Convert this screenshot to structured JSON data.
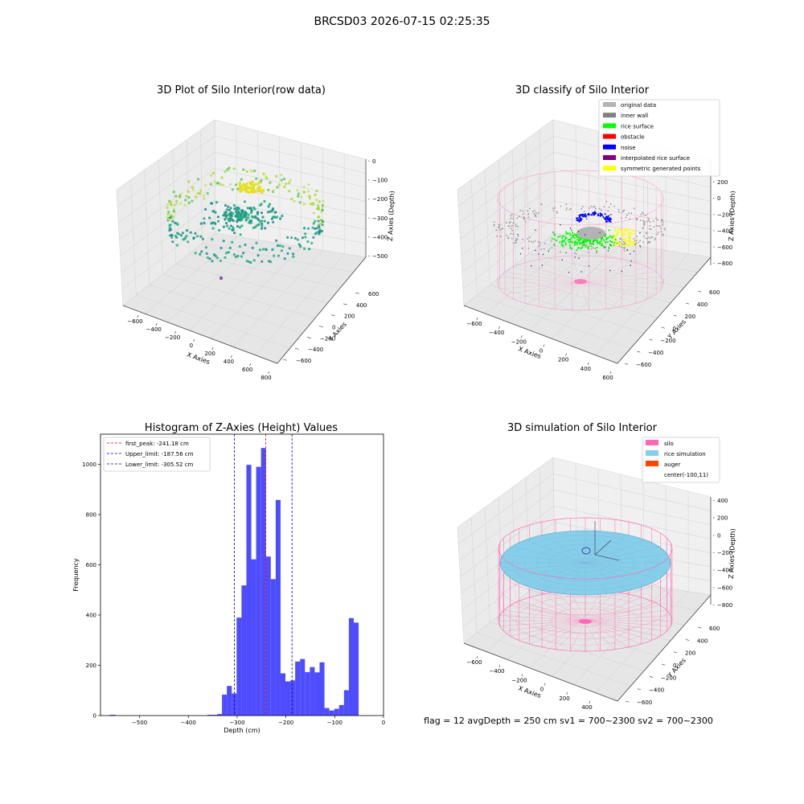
{
  "figure": {
    "suptitle": "BRCSD03 2026-07-15 02:25:35",
    "footer": "flag = 12   avgDepth = 250 cm  sv1 = 700~2300  sv2 = 700~2300"
  },
  "chart_data": [
    {
      "type": "scatter",
      "projection": "3d",
      "title": "3D Plot of Silo Interior(row data)",
      "xlabel": "X Axies",
      "ylabel": "Y Axies",
      "zlabel": "Z Axies (Depth)",
      "xticks": [
        "−600",
        "−400",
        "−200",
        "0",
        "200",
        "400",
        "600",
        "800"
      ],
      "yticks": [
        "−600",
        "−400",
        "−200",
        "0",
        "200",
        "400",
        "600"
      ],
      "zticks": [
        "0",
        "−100",
        "−200",
        "−300",
        "−400",
        "−500"
      ],
      "xlim": [
        -700,
        800
      ],
      "ylim": [
        -600,
        650
      ],
      "zlim": [
        -560,
        0
      ],
      "colormap": "viridis",
      "colors": {
        "pane": "#f2f2f2",
        "grid": "#d6d6d6"
      }
    },
    {
      "type": "scatter",
      "projection": "3d",
      "title": "3D classify of Silo Interior",
      "xlabel": "X Axies",
      "ylabel": "Y Axies",
      "zlabel": "Z Axies (Depth)",
      "xticks": [
        "−600",
        "−400",
        "−200",
        "0",
        "200",
        "400",
        "600"
      ],
      "yticks": [
        "−600",
        "−400",
        "−200",
        "0",
        "200",
        "400",
        "600"
      ],
      "zticks": [
        "200",
        "0",
        "−200",
        "−400",
        "−600",
        "−800"
      ],
      "legend_position": "top-right",
      "legend": [
        {
          "name": "original data",
          "color": "#b3b3b3"
        },
        {
          "name": "inner wall",
          "color": "#808080"
        },
        {
          "name": "rice surface",
          "color": "#00ff00"
        },
        {
          "name": "obstacle",
          "color": "#ff0000"
        },
        {
          "name": "noise",
          "color": "#0000ff"
        },
        {
          "name": "interpolated rice surface",
          "color": "#800080"
        },
        {
          "name": "symmetric generated points",
          "color": "#ffff00"
        }
      ],
      "colors": {
        "silo_wire": "#ff69b4"
      }
    },
    {
      "type": "bar",
      "title": "Histogram of Z-Axies (Height) Values",
      "xlabel": "Depth (cm)",
      "ylabel": "Frequency",
      "xlim": [
        -580,
        0
      ],
      "ylim": [
        0,
        1120
      ],
      "xticks": [
        -500,
        -400,
        -300,
        -200,
        -100,
        0
      ],
      "xtick_labels": [
        "−500",
        "−400",
        "−300",
        "−200",
        "−100",
        "0"
      ],
      "yticks": [
        0,
        200,
        400,
        600,
        800,
        1000
      ],
      "yticks_labels": [
        "0",
        "200",
        "400",
        "600",
        "800",
        "1000"
      ],
      "bar_color": "#4d4dff",
      "bins": [
        {
          "x0": -561,
          "x1": -549,
          "value": 3
        },
        {
          "x0": -361,
          "x1": -351,
          "value": 3
        },
        {
          "x0": -351,
          "x1": -341,
          "value": 3
        },
        {
          "x0": -341,
          "x1": -331,
          "value": 6
        },
        {
          "x0": -331,
          "x1": -321,
          "value": 83
        },
        {
          "x0": -321,
          "x1": -311,
          "value": 118
        },
        {
          "x0": -311,
          "x1": -301,
          "value": 88
        },
        {
          "x0": -301,
          "x1": -291,
          "value": 390
        },
        {
          "x0": -291,
          "x1": -281,
          "value": 518
        },
        {
          "x0": -281,
          "x1": -271,
          "value": 998
        },
        {
          "x0": -271,
          "x1": -261,
          "value": 622
        },
        {
          "x0": -261,
          "x1": -251,
          "value": 990
        },
        {
          "x0": -251,
          "x1": -241,
          "value": 1065
        },
        {
          "x0": -241,
          "x1": -231,
          "value": 633
        },
        {
          "x0": -231,
          "x1": -221,
          "value": 543
        },
        {
          "x0": -221,
          "x1": -211,
          "value": 858
        },
        {
          "x0": -211,
          "x1": -201,
          "value": 168
        },
        {
          "x0": -201,
          "x1": -191,
          "value": 136
        },
        {
          "x0": -191,
          "x1": -181,
          "value": 140
        },
        {
          "x0": -181,
          "x1": -171,
          "value": 215
        },
        {
          "x0": -171,
          "x1": -161,
          "value": 225
        },
        {
          "x0": -161,
          "x1": -151,
          "value": 173
        },
        {
          "x0": -151,
          "x1": -141,
          "value": 193
        },
        {
          "x0": -141,
          "x1": -131,
          "value": 172
        },
        {
          "x0": -131,
          "x1": -121,
          "value": 212
        },
        {
          "x0": -121,
          "x1": -111,
          "value": 30
        },
        {
          "x0": -111,
          "x1": -101,
          "value": 20
        },
        {
          "x0": -101,
          "x1": -91,
          "value": 27
        },
        {
          "x0": -91,
          "x1": -81,
          "value": 42
        },
        {
          "x0": -81,
          "x1": -71,
          "value": 101
        },
        {
          "x0": -71,
          "x1": -61,
          "value": 388
        },
        {
          "x0": -61,
          "x1": -51,
          "value": 370
        }
      ],
      "vlines": [
        {
          "name": "first_peak: -241.18 cm",
          "x": -241.18,
          "color": "#ff0000"
        },
        {
          "name": "Upper_limit: -187.56 cm",
          "x": -187.56,
          "color": "#0000aa"
        },
        {
          "name": "Lower_limit: -305.52 cm",
          "x": -305.52,
          "color": "#0000aa"
        }
      ],
      "legend_position": "top-left"
    },
    {
      "type": "surface",
      "projection": "3d",
      "title": "3D simulation of Silo Interior",
      "xlabel": "X Axies",
      "ylabel": "Y Axies",
      "zlabel": "Z Axies (Depth)",
      "xticks": [
        "−600",
        "−400",
        "−200",
        "0",
        "200",
        "400"
      ],
      "yticks": [
        "−600",
        "−400",
        "−200",
        "0",
        "200",
        "400",
        "600"
      ],
      "zticks": [
        "400",
        "200",
        "0",
        "−200",
        "−400",
        "−600",
        "−800"
      ],
      "legend_position": "top-right",
      "legend": [
        {
          "name": "silo",
          "color": "#ff69b4"
        },
        {
          "name": "rice simulation",
          "color": "#87ceeb"
        },
        {
          "name": "auger",
          "color": "#ff4500"
        },
        {
          "name": "center(-100,11)",
          "color": ""
        }
      ]
    }
  ]
}
